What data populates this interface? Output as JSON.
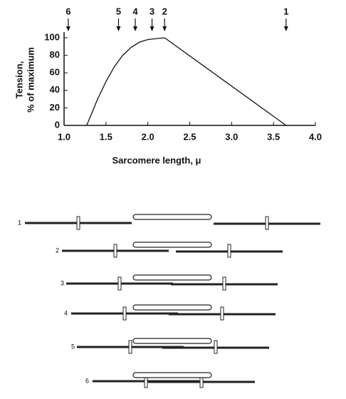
{
  "chart_data": {
    "type": "line",
    "x_label": "Sarcomere length, μ",
    "y_label": [
      "Tension,",
      "% of maximum"
    ],
    "xlim": [
      1,
      4
    ],
    "ylim": [
      0,
      100
    ],
    "xticks": [
      {
        "value": 1,
        "label": "1.0"
      },
      1.5,
      {
        "value": 2,
        "label": "2.0"
      },
      2.5,
      {
        "value": 3,
        "label": "3.0"
      },
      3.5,
      {
        "value": 4,
        "label": "4.0"
      }
    ],
    "yticks": [
      0,
      20,
      40,
      60,
      80,
      100
    ],
    "series": [
      {
        "color": "#111111",
        "x": [
          1.27,
          1.4,
          1.5,
          1.6,
          1.7,
          1.8,
          1.9,
          2.0,
          2.2,
          3.65
        ],
        "values": [
          0,
          30,
          50,
          67,
          80,
          89,
          95,
          98,
          100,
          0
        ]
      }
    ],
    "markers": [
      {
        "label": "6",
        "x": 1.05
      },
      {
        "label": "5",
        "x": 1.65
      },
      {
        "label": "4",
        "x": 1.85
      },
      {
        "label": "3",
        "x": 2.05
      },
      {
        "label": "2",
        "x": 2.2
      },
      {
        "label": "1",
        "x": 3.65
      }
    ],
    "diagrams": [
      "1",
      "2",
      "3",
      "4",
      "5",
      "6"
    ]
  }
}
